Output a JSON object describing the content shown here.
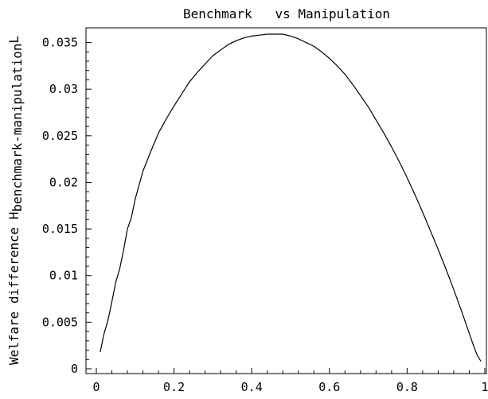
{
  "chart_data": {
    "type": "line",
    "title": "Benchmark   vs Manipulation",
    "ylabel": "Welfare difference H",
    "ylabel_sub": "benchmark-manipulation",
    "ylabel_close": "L",
    "xlabel": "",
    "xlim": [
      0,
      1
    ],
    "ylim": [
      0,
      0.036
    ],
    "x_ticks": [
      0,
      0.2,
      0.4,
      0.6,
      0.8,
      1
    ],
    "x_tick_labels": [
      "0",
      "0.2",
      "0.4",
      "0.6",
      "0.8",
      "1"
    ],
    "y_ticks": [
      0,
      0.005,
      0.01,
      0.015,
      0.02,
      0.025,
      0.03,
      0.035
    ],
    "y_tick_labels": [
      "0",
      "0.005",
      "0.01",
      "0.015",
      "0.02",
      "0.025",
      "0.03",
      "0.035"
    ],
    "grid": false,
    "series": [
      {
        "x": [
          0.01,
          0.02,
          0.03,
          0.04,
          0.05,
          0.06,
          0.07,
          0.08,
          0.09,
          0.1,
          0.12,
          0.14,
          0.16,
          0.18,
          0.2,
          0.22,
          0.24,
          0.26,
          0.28,
          0.3,
          0.32,
          0.34,
          0.36,
          0.38,
          0.4,
          0.42,
          0.44,
          0.46,
          0.47,
          0.48,
          0.5,
          0.52,
          0.54,
          0.56,
          0.58,
          0.6,
          0.62,
          0.64,
          0.66,
          0.68,
          0.7,
          0.72,
          0.74,
          0.76,
          0.78,
          0.8,
          0.82,
          0.84,
          0.86,
          0.88,
          0.9,
          0.92,
          0.94,
          0.95,
          0.96,
          0.97,
          0.98,
          0.99
        ],
        "y": [
          0.0018,
          0.0038,
          0.0052,
          0.0072,
          0.0093,
          0.0107,
          0.0127,
          0.015,
          0.0162,
          0.0182,
          0.0212,
          0.0233,
          0.0253,
          0.0268,
          0.0282,
          0.0295,
          0.0308,
          0.0318,
          0.0327,
          0.0336,
          0.0342,
          0.0348,
          0.0352,
          0.0355,
          0.0357,
          0.0358,
          0.0359,
          0.0359,
          0.0359,
          0.0359,
          0.0357,
          0.0354,
          0.035,
          0.0346,
          0.034,
          0.0333,
          0.0325,
          0.0316,
          0.0305,
          0.0293,
          0.0281,
          0.0267,
          0.0253,
          0.0238,
          0.0222,
          0.0205,
          0.0187,
          0.0168,
          0.0148,
          0.0128,
          0.0107,
          0.0085,
          0.0062,
          0.005,
          0.0038,
          0.0026,
          0.0015,
          0.0008
        ]
      }
    ]
  }
}
